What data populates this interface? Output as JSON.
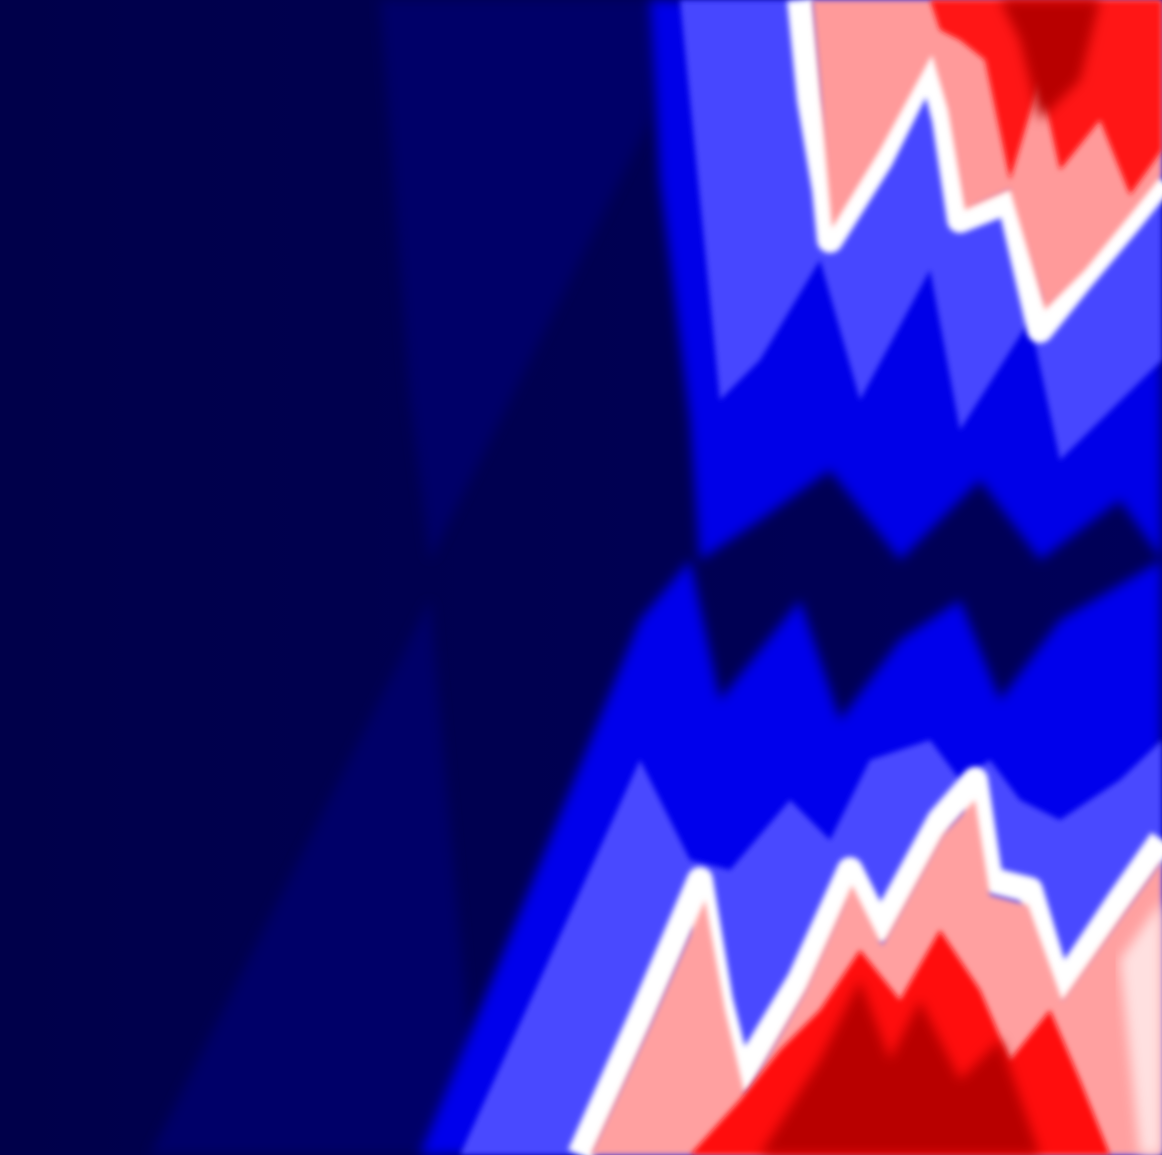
{
  "image": {
    "subject": "abstract-field-plot",
    "colormap": [
      "#00004a",
      "#00007a",
      "#0000ff",
      "#4646ff",
      "#ffffff",
      "#ff8a8a",
      "#ff0000",
      "#b00000"
    ],
    "palette": {
      "background": "#00004a",
      "deep_blue": "#00006e",
      "mid_blue": "#0000f0",
      "light_blue": "#4848ff",
      "white": "#ffffff",
      "light_red": "#ffa0a0",
      "red": "#ff1010",
      "dark_red": "#c00000"
    }
  }
}
